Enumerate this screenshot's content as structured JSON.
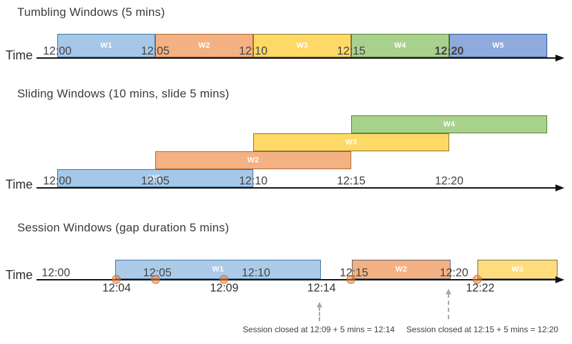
{
  "colors": {
    "timeline": "#111111",
    "title_text": "#3a3a3a",
    "tick_text": "#444444",
    "annotation_text": "#3f3f3f",
    "dashed_arrow": "#a6a6a6",
    "window_label_text": "#ffffff",
    "event_dot_fill": "rgba(237,125,49,0.55)",
    "event_dot_border": "rgba(191,100,32,0.65)"
  },
  "sections": {
    "tumbling": {
      "title": "Tumbling Windows (5 mins)",
      "axis_label": "Time",
      "windows": [
        {
          "label": "W1",
          "fill": "#a5c8e8",
          "border": "#41719c"
        },
        {
          "label": "W2",
          "fill": "#f4b183",
          "border": "#ae6a32"
        },
        {
          "label": "W3",
          "fill": "#ffd966",
          "border": "#827a33"
        },
        {
          "label": "W4",
          "fill": "#a9d18e",
          "border": "#538135"
        },
        {
          "label": "W5",
          "fill": "#8faadc",
          "border": "#2f5597"
        }
      ],
      "ticks": [
        {
          "label": "12:00",
          "weight": "400"
        },
        {
          "label": "12:05",
          "weight": "400"
        },
        {
          "label": "12:10",
          "weight": "400"
        },
        {
          "label": "12:15",
          "weight": "400"
        },
        {
          "label": "12:20",
          "weight": "700"
        }
      ]
    },
    "sliding": {
      "title": "Sliding Windows (10 mins, slide 5 mins)",
      "axis_label": "Time",
      "windows": [
        {
          "label": "W1",
          "fill": "#a5c8e8",
          "border": "#41719c"
        },
        {
          "label": "W2",
          "fill": "#f4b183",
          "border": "#ae6a32"
        },
        {
          "label": "W3",
          "fill": "#ffd966",
          "border": "#827a33"
        },
        {
          "label": "W4",
          "fill": "#a9d18e",
          "border": "#538135"
        }
      ],
      "ticks": [
        "12:00",
        "12:05",
        "12:10",
        "12:15",
        "12:20"
      ]
    },
    "session": {
      "title": "Session Windows (gap duration 5 mins)",
      "axis_label": "Time",
      "windows": [
        {
          "label": "W1",
          "fill": "#accbe9",
          "border": "#41719c"
        },
        {
          "label": "W2",
          "fill": "#f4b183",
          "border": "#5d6470"
        },
        {
          "label": "W3",
          "fill": "#ffdd7e",
          "border": "#6e6e4e"
        }
      ],
      "ticks": [
        "12:00",
        "12:05",
        "12:10",
        "12:15",
        "12:20"
      ],
      "event_labels": [
        "12:04",
        "12:09",
        "12:14",
        "12:22"
      ],
      "annotations": [
        "Session closed at 12:09 + 5 mins = 12:14",
        "Session closed at 12:15 + 5 mins = 12:20"
      ]
    }
  }
}
